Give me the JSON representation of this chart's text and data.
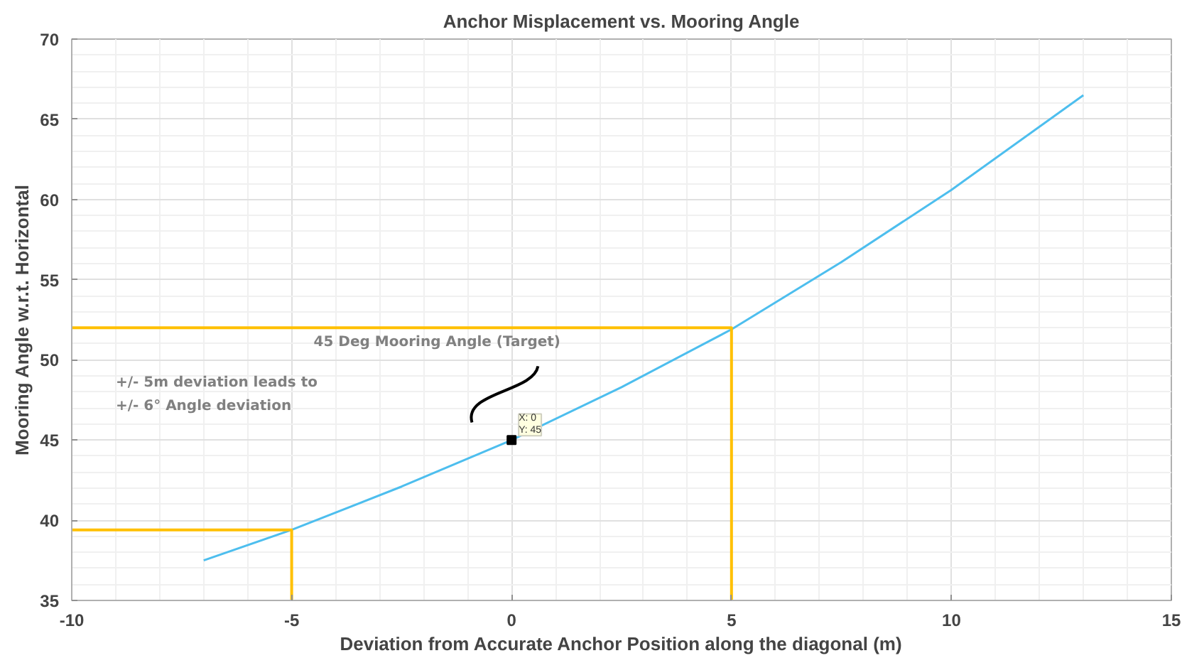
{
  "chart_data": {
    "type": "line",
    "title": "Anchor Misplacement vs. Mooring Angle",
    "xlabel": "Deviation from Accurate Anchor Position along the diagonal (m)",
    "ylabel": "Mooring Angle w.r.t. Horizontal",
    "xlim": [
      -10,
      15
    ],
    "xticks": [
      -10,
      -5,
      0,
      5,
      10,
      15
    ],
    "ylim": [
      35,
      70
    ],
    "yticks": [
      35,
      40,
      45,
      50,
      55,
      60,
      65,
      70
    ],
    "grid": true,
    "marker": "none",
    "line_style": "solid",
    "series": [
      {
        "color": "#4dbeee",
        "x": [
          -7,
          -5,
          -2.5,
          0,
          2.5,
          5,
          7.5,
          10,
          13
        ],
        "values": [
          37.5,
          39.4,
          42.1,
          45,
          48.3,
          51.9,
          56.1,
          60.6,
          66.5
        ]
      },
      {
        "color": "#ffc000",
        "x": [
          -10,
          5,
          5
        ],
        "values": [
          52,
          52,
          35
        ]
      },
      {
        "color": "#ffc000",
        "x": [
          -10,
          -5,
          -5
        ],
        "values": [
          39.4,
          39.4,
          35
        ]
      },
      {
        "type": "scatter",
        "marker": "square",
        "color": "#000000",
        "x": [
          0
        ],
        "values": [
          45
        ]
      }
    ],
    "annotations": [
      "45 Deg Mooring Angle (Target)",
      "+/- 5m deviation leads to\n+/- 6° Angle deviation",
      {
        "text": "X: 0\nY: 45",
        "x": 0,
        "y": 45
      }
    ]
  }
}
